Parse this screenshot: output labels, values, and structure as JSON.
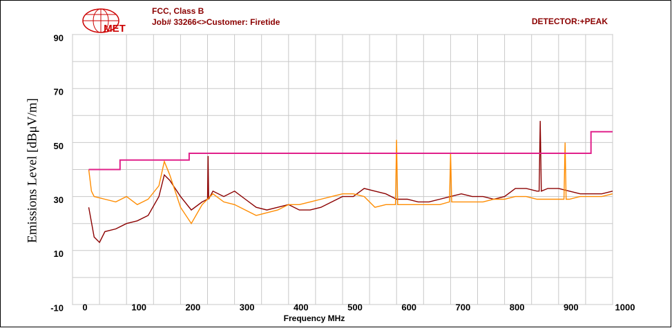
{
  "chart_data": {
    "type": "line",
    "title": "FCC, Class B",
    "subtitle": "Job# 33266<>Customer: Firetide",
    "annotation": "DETECTOR:+PEAK",
    "logo": "MET",
    "x_label": "Frequency MHz",
    "y_label": "Emissions Level [dBμV/m]",
    "xlim": [
      0,
      1000
    ],
    "ylim": [
      -10,
      90
    ],
    "xticks": [
      0,
      100,
      200,
      300,
      400,
      500,
      600,
      700,
      800,
      900,
      1000
    ],
    "yticks": [
      -10,
      10,
      30,
      50,
      70,
      90
    ],
    "xgrid": [
      0,
      50,
      100,
      150,
      200,
      250,
      300,
      350,
      400,
      450,
      500,
      550,
      600,
      650,
      700,
      750,
      800,
      850,
      900,
      950,
      1000
    ],
    "ygrid": [
      -10,
      0,
      10,
      20,
      30,
      40,
      50,
      60,
      70,
      80,
      90
    ],
    "grid": true,
    "series": [
      {
        "color": "#8b0000",
        "x": [
          30,
          40,
          50,
          60,
          80,
          100,
          120,
          140,
          160,
          170,
          180,
          200,
          220,
          240,
          250,
          251,
          252,
          260,
          280,
          300,
          320,
          340,
          360,
          380,
          400,
          420,
          440,
          460,
          480,
          500,
          520,
          540,
          560,
          580,
          600,
          620,
          640,
          660,
          680,
          700,
          720,
          740,
          760,
          780,
          800,
          820,
          840,
          860,
          864,
          866,
          868,
          880,
          900,
          920,
          940,
          960,
          980,
          1000
        ],
        "values": [
          26,
          15,
          13,
          17,
          18,
          20,
          21,
          23,
          30,
          38,
          36,
          30,
          25,
          28,
          29,
          45,
          29,
          32,
          30,
          32,
          29,
          26,
          25,
          26,
          27,
          25,
          25,
          26,
          28,
          30,
          30,
          33,
          32,
          31,
          29,
          29,
          28,
          28,
          29,
          30,
          31,
          30,
          30,
          29,
          30,
          33,
          33,
          32,
          32,
          58,
          32,
          33,
          33,
          32,
          31,
          31,
          31,
          32
        ]
      },
      {
        "color": "#ff8c00",
        "x": [
          30,
          35,
          40,
          60,
          80,
          100,
          120,
          140,
          160,
          170,
          180,
          200,
          220,
          240,
          260,
          280,
          300,
          320,
          340,
          360,
          380,
          400,
          420,
          440,
          460,
          480,
          500,
          520,
          540,
          560,
          580,
          598,
          600,
          602,
          620,
          640,
          660,
          680,
          698,
          700,
          702,
          720,
          740,
          760,
          780,
          800,
          820,
          840,
          860,
          880,
          900,
          910,
          912,
          914,
          920,
          940,
          960,
          980,
          1000
        ],
        "values": [
          40,
          32,
          30,
          29,
          28,
          30,
          27,
          29,
          34,
          43,
          38,
          26,
          20,
          27,
          31,
          28,
          27,
          25,
          23,
          24,
          25,
          27,
          27,
          28,
          29,
          30,
          31,
          31,
          30,
          26,
          27,
          27,
          51,
          27,
          27,
          27,
          27,
          27,
          28,
          46,
          28,
          28,
          28,
          28,
          29,
          29,
          30,
          30,
          29,
          29,
          29,
          29,
          50,
          29,
          29,
          30,
          30,
          30,
          31
        ]
      },
      {
        "color": "#e0208a",
        "x": [
          30,
          88,
          88,
          216,
          216,
          960,
          960,
          1000
        ],
        "values": [
          40,
          40,
          43.5,
          43.5,
          46,
          46,
          54,
          54
        ]
      }
    ]
  }
}
